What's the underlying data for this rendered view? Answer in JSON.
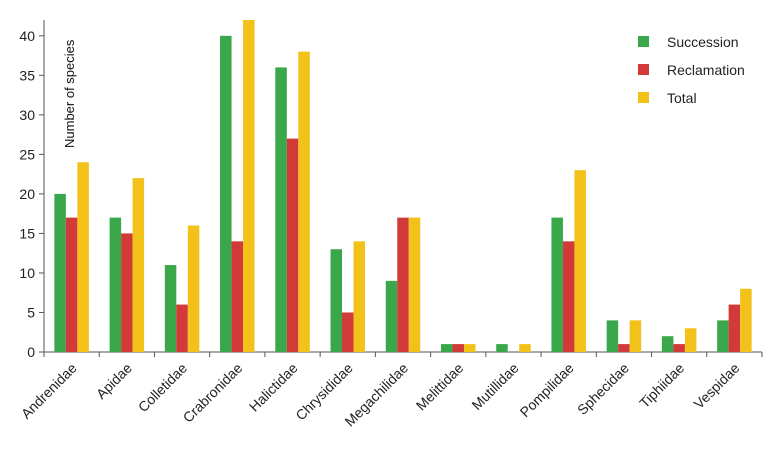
{
  "chart_data": {
    "type": "bar",
    "categories": [
      "Andrenidae",
      "Apidae",
      "Colletidae",
      "Crabronidae",
      "Halictidae",
      "Chrysididae",
      "Megachilidae",
      "Melittidae",
      "Mutillidae",
      "Pompilidae",
      "Sphecidae",
      "Tiphiidae",
      "Vespidae"
    ],
    "series": [
      {
        "name": "Succession",
        "color": "#3aa84a",
        "values": [
          20,
          17,
          11,
          40,
          36,
          13,
          9,
          1,
          1,
          17,
          4,
          2,
          4
        ]
      },
      {
        "name": "Reclamation",
        "color": "#d23a3a",
        "values": [
          17,
          15,
          6,
          14,
          27,
          5,
          17,
          1,
          0,
          14,
          1,
          1,
          6
        ]
      },
      {
        "name": "Total",
        "color": "#f2c21a",
        "values": [
          24,
          22,
          16,
          42,
          38,
          14,
          17,
          1,
          1,
          23,
          4,
          3,
          8
        ]
      }
    ],
    "ylabel": "Number of species",
    "xlabel": "",
    "ylim": [
      0,
      42
    ],
    "yticks": [
      0,
      5,
      10,
      15,
      20,
      25,
      30,
      35,
      40
    ],
    "legend_position": "top-right",
    "grid": false
  }
}
